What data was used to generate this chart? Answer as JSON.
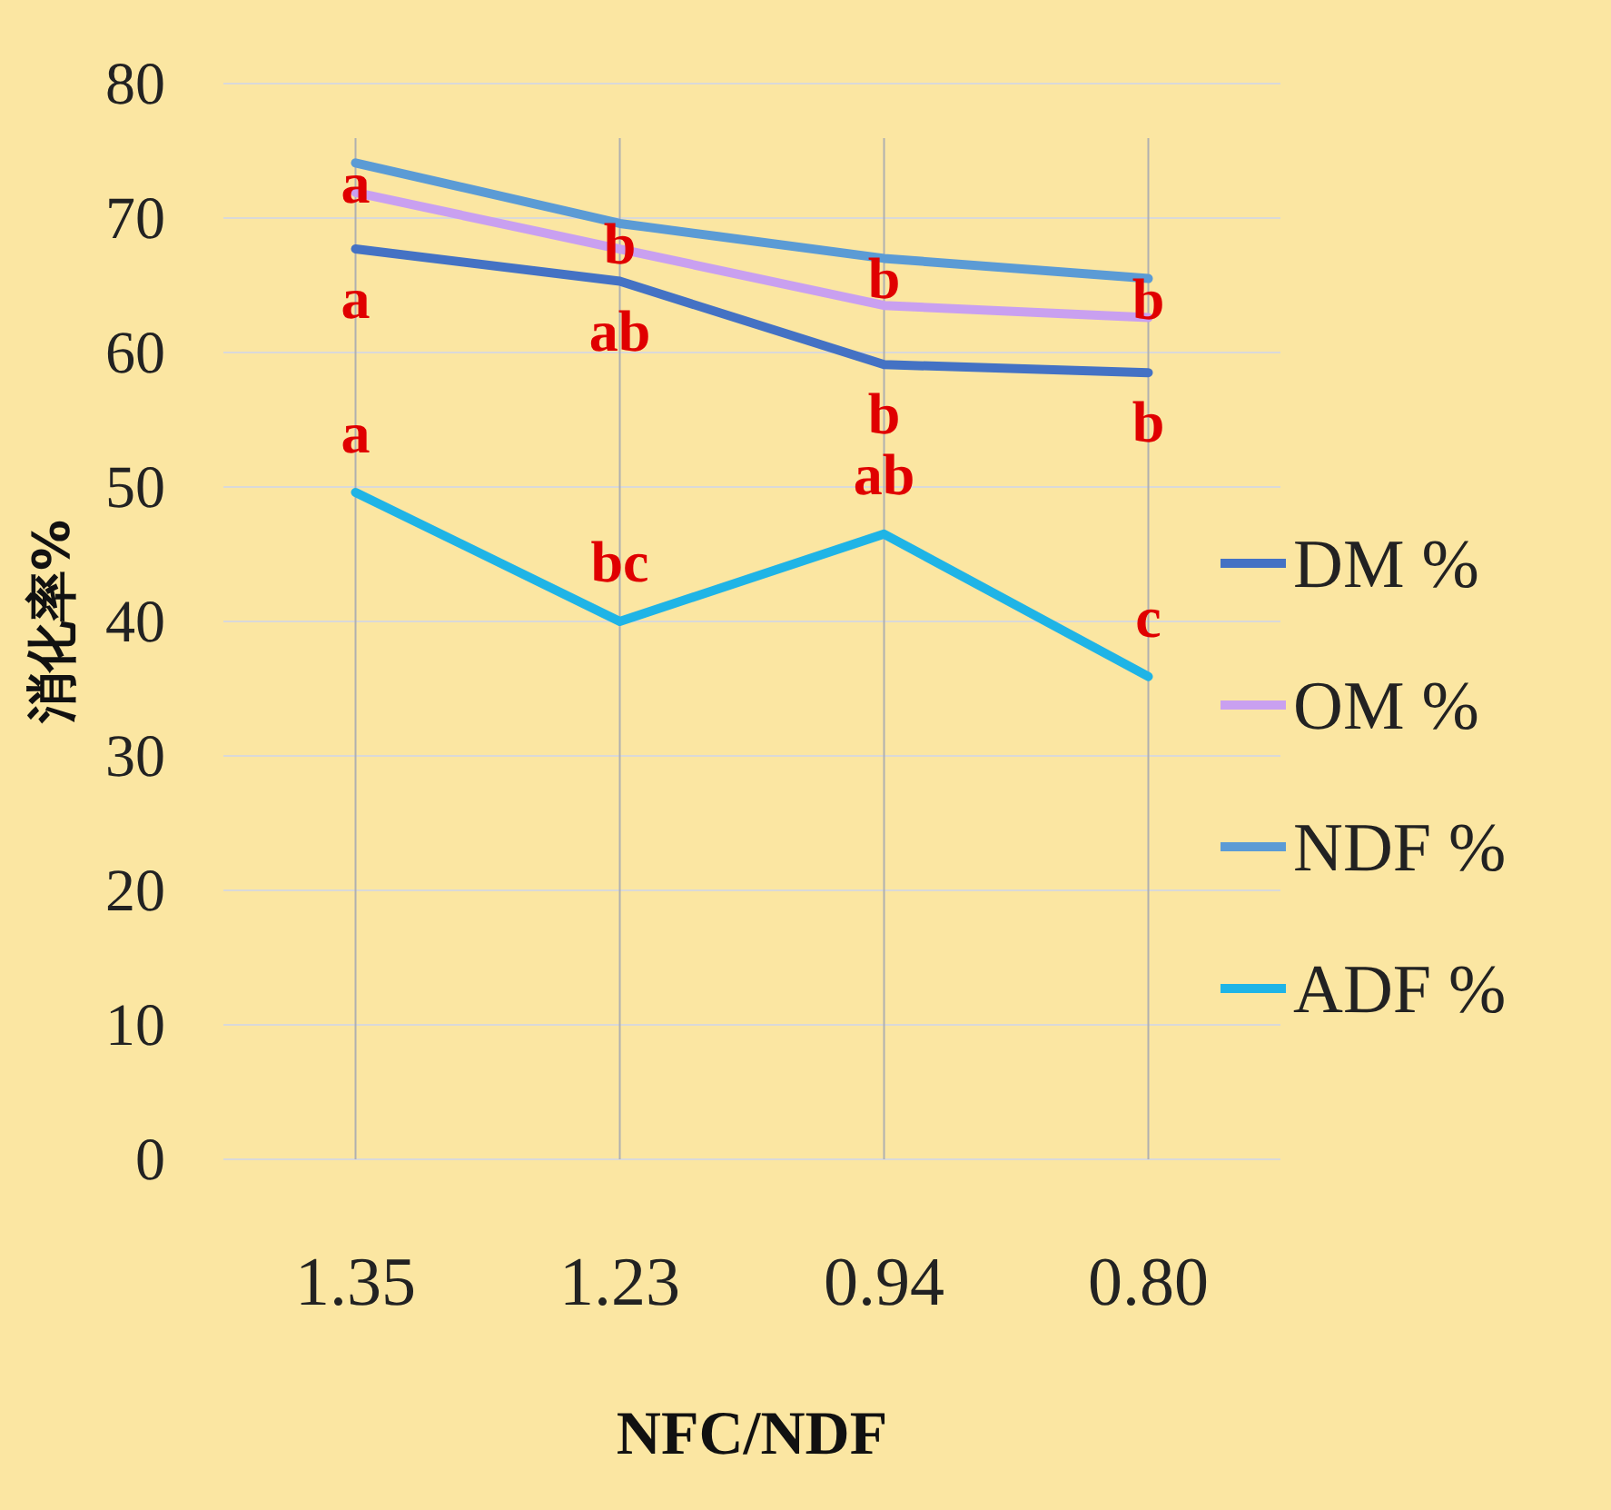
{
  "chart_data": {
    "type": "line",
    "xlabel": "NFC/NDF",
    "ylabel": "消化率%",
    "categories": [
      "1.35",
      "1.23",
      "0.94",
      "0.80"
    ],
    "series": [
      {
        "name": "DM %",
        "color": "#4472c4",
        "values": [
          67.7,
          65.3,
          59.1,
          58.5
        ]
      },
      {
        "name": "OM %",
        "color": "#c9a0f0",
        "values": [
          71.9,
          67.7,
          63.5,
          62.6
        ]
      },
      {
        "name": "NDF %",
        "color": "#5b9bd5",
        "values": [
          74.1,
          69.6,
          67.0,
          65.5
        ]
      },
      {
        "name": "ADF %",
        "color": "#1fb4e6",
        "values": [
          49.6,
          40.0,
          46.5,
          35.9
        ]
      }
    ],
    "annotations": [
      {
        "text": "a",
        "x": "1.35",
        "y": 74.1
      },
      {
        "text": "b",
        "x": "1.23",
        "y": 69.6
      },
      {
        "text": "b",
        "x": "0.94",
        "y": 67.0
      },
      {
        "text": "b",
        "x": "0.80",
        "y": 65.5
      },
      {
        "text": "a",
        "x": "1.35",
        "y": 67.7
      },
      {
        "text": "ab",
        "x": "1.23",
        "y": 65.3
      },
      {
        "text": "b",
        "x": "0.94",
        "y": 59.1
      },
      {
        "text": "b",
        "x": "0.80",
        "y": 58.5
      },
      {
        "text": "a",
        "x": "1.35",
        "y": 49.6
      },
      {
        "text": "bc",
        "x": "1.23",
        "y": 40.0
      },
      {
        "text": "ab",
        "x": "0.94",
        "y": 46.5
      },
      {
        "text": "c",
        "x": "0.80",
        "y": 35.9
      }
    ],
    "ylim": [
      0,
      80
    ],
    "yticks": [
      0,
      10,
      20,
      30,
      40,
      50,
      60,
      70,
      80
    ],
    "grid": true,
    "legend": "right",
    "marker": "none",
    "line_style": "solid"
  }
}
